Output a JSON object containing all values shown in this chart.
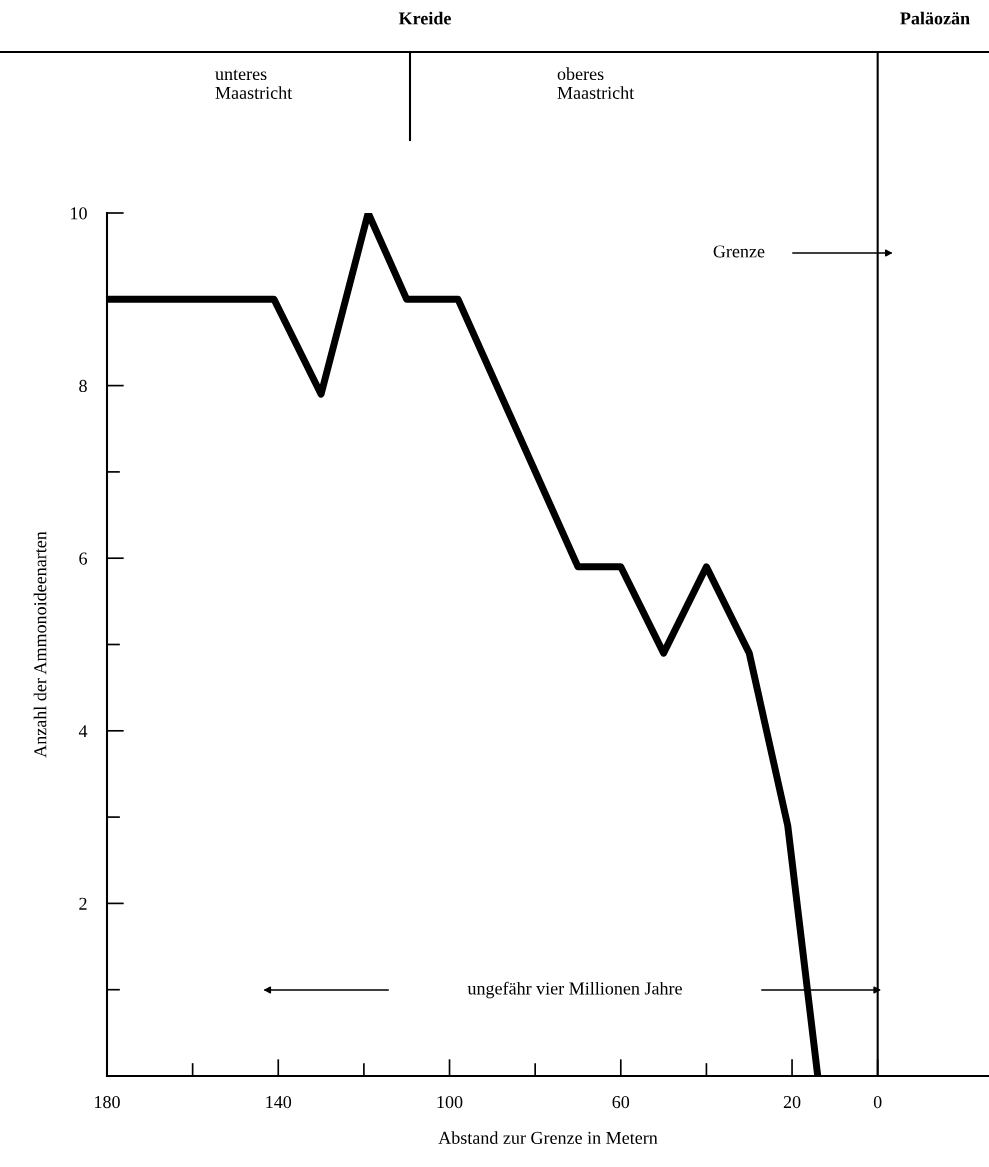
{
  "chart_data": {
    "type": "line",
    "xlabel": "Abstand zur Grenze in Metern",
    "ylabel": "Anzahl der Ammonoideenarten",
    "x": [
      180,
      141,
      130,
      119,
      110,
      98,
      70,
      60,
      50,
      40,
      30,
      21,
      14
    ],
    "series": [
      {
        "color": "#000000",
        "values": [
          9,
          9,
          7.9,
          10,
          9,
          9,
          5.9,
          5.9,
          4.9,
          5.9,
          4.9,
          2.9,
          0
        ]
      }
    ],
    "xlim": [
      180,
      -26
    ],
    "xticks": [
      180,
      {
        "value": 160,
        "label": null
      },
      140,
      {
        "value": 120,
        "label": null
      },
      100,
      {
        "value": 80,
        "label": null
      },
      60,
      {
        "value": 40,
        "label": null
      },
      20,
      0
    ],
    "ylim": [
      0,
      10
    ],
    "yticks": [
      {
        "value": 1,
        "label": null
      },
      2,
      {
        "value": 3,
        "label": null
      },
      4,
      {
        "value": 5,
        "label": null
      },
      6,
      {
        "value": 7,
        "label": null
      },
      8,
      {
        "value": 9,
        "label": null
      },
      10
    ],
    "ref_lines": [
      {
        "axis": "x",
        "value": 0,
        "color": "#000000"
      }
    ],
    "annotations": [
      "Kreide",
      "Paläozän",
      "unteres\nMaastricht",
      "oberes\nMaastricht",
      "Grenze",
      "ungefähr vier Millionen Jahre"
    ],
    "marker": "none",
    "line_style": "solid",
    "grid": false,
    "legend": false
  }
}
